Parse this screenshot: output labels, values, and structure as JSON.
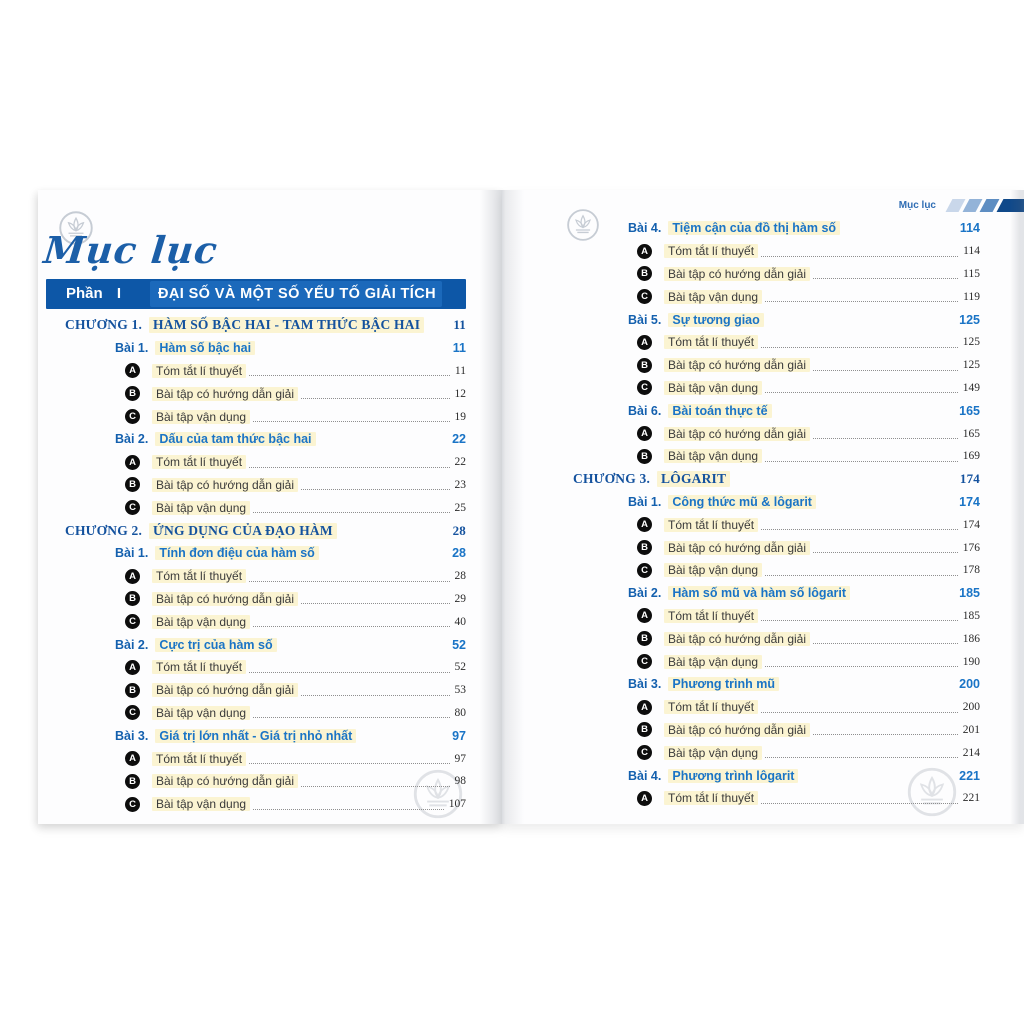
{
  "colors": {
    "banner_blue": "#0d57a7",
    "banner_inner_blue": "#1b69bb",
    "chapter_blue": "#14529e",
    "lesson_blue": "#1a74c6",
    "highlight_yellow": "#fbf4d2",
    "script_blue": "#1c5fa8",
    "badge_black": "#0d0d0d",
    "header_bar_navy": "#10498a",
    "chevron_light": "#c9d7ea",
    "chevron_mid": "#93b3d8",
    "chevron_dark": "#5d8dc2"
  },
  "left_page": {
    "logo_icon": "lotus-publisher-logo",
    "script_title": "Mục lục",
    "part_banner": {
      "label": "Phần I",
      "title": "ĐẠI SỐ VÀ MỘT SỐ YẾU TỐ GIẢI TÍCH"
    },
    "entries": [
      {
        "type": "chapter",
        "label": "CHƯƠNG 1.",
        "title": "HÀM SỐ BẬC HAI - TAM THỨC BẬC HAI",
        "page": "11"
      },
      {
        "type": "lesson",
        "label": "Bài 1.",
        "title": "Hàm số bậc hai",
        "page": "11"
      },
      {
        "type": "item",
        "badge": "A",
        "title": "Tóm tắt lí thuyết",
        "page": "11"
      },
      {
        "type": "item",
        "badge": "B",
        "title": "Bài tập có hướng dẫn giải",
        "page": "12"
      },
      {
        "type": "item",
        "badge": "C",
        "title": "Bài tập vận dụng",
        "page": "19"
      },
      {
        "type": "lesson",
        "label": "Bài 2.",
        "title": "Dấu của tam thức bậc hai",
        "page": "22"
      },
      {
        "type": "item",
        "badge": "A",
        "title": "Tóm tắt lí thuyết",
        "page": "22"
      },
      {
        "type": "item",
        "badge": "B",
        "title": "Bài tập có hướng dẫn giải",
        "page": "23"
      },
      {
        "type": "item",
        "badge": "C",
        "title": "Bài tập vận dụng",
        "page": "25"
      },
      {
        "type": "chapter",
        "label": "CHƯƠNG 2.",
        "title": "ỨNG DỤNG CỦA ĐẠO HÀM",
        "page": "28"
      },
      {
        "type": "lesson",
        "label": "Bài 1.",
        "title": "Tính đơn điệu của hàm số",
        "page": "28"
      },
      {
        "type": "item",
        "badge": "A",
        "title": "Tóm tắt lí thuyết",
        "page": "28"
      },
      {
        "type": "item",
        "badge": "B",
        "title": "Bài tập có hướng dẫn giải",
        "page": "29"
      },
      {
        "type": "item",
        "badge": "C",
        "title": "Bài tập vận dụng",
        "page": "40"
      },
      {
        "type": "lesson",
        "label": "Bài 2.",
        "title": "Cực trị của hàm số",
        "page": "52"
      },
      {
        "type": "item",
        "badge": "A",
        "title": "Tóm tắt lí thuyết",
        "page": "52"
      },
      {
        "type": "item",
        "badge": "B",
        "title": "Bài tập có hướng dẫn giải",
        "page": "53"
      },
      {
        "type": "item",
        "badge": "C",
        "title": "Bài tập vận dụng",
        "page": "80"
      },
      {
        "type": "lesson",
        "label": "Bài 3.",
        "title": "Giá trị lớn nhất - Giá trị nhỏ nhất",
        "page": "97"
      },
      {
        "type": "item",
        "badge": "A",
        "title": "Tóm tắt lí thuyết",
        "page": "97"
      },
      {
        "type": "item",
        "badge": "B",
        "title": "Bài tập có hướng dẫn giải",
        "page": "98"
      },
      {
        "type": "item",
        "badge": "C",
        "title": "Bài tập vận dụng",
        "page": "107"
      }
    ]
  },
  "right_page": {
    "logo_icon": "lotus-publisher-logo",
    "header_label": "Mục lục",
    "entries": [
      {
        "type": "lesson",
        "label": "Bài 4.",
        "title": "Tiệm cận của đồ thị hàm số",
        "page": "114"
      },
      {
        "type": "item",
        "badge": "A",
        "title": "Tóm tắt lí thuyết",
        "page": "114"
      },
      {
        "type": "item",
        "badge": "B",
        "title": "Bài tập có hướng dẫn giải",
        "page": "115"
      },
      {
        "type": "item",
        "badge": "C",
        "title": "Bài tập vận dụng",
        "page": "119"
      },
      {
        "type": "lesson",
        "label": "Bài 5.",
        "title": "Sự tương giao",
        "page": "125"
      },
      {
        "type": "item",
        "badge": "A",
        "title": "Tóm tắt lí thuyết",
        "page": "125"
      },
      {
        "type": "item",
        "badge": "B",
        "title": "Bài tập có hướng dẫn giải",
        "page": "125"
      },
      {
        "type": "item",
        "badge": "C",
        "title": "Bài tập vận dụng",
        "page": "149"
      },
      {
        "type": "lesson",
        "label": "Bài 6.",
        "title": "Bài toán thực tế",
        "page": "165"
      },
      {
        "type": "item",
        "badge": "A",
        "title": "Bài tập có hướng dẫn giải",
        "page": "165"
      },
      {
        "type": "item",
        "badge": "B",
        "title": "Bài tập vận dụng",
        "page": "169"
      },
      {
        "type": "chapter",
        "label": "CHƯƠNG 3.",
        "title": "LÔGARIT",
        "page": "174"
      },
      {
        "type": "lesson",
        "label": "Bài 1.",
        "title": "Công thức mũ & lôgarit",
        "page": "174"
      },
      {
        "type": "item",
        "badge": "A",
        "title": "Tóm tắt lí thuyết",
        "page": "174"
      },
      {
        "type": "item",
        "badge": "B",
        "title": "Bài tập có hướng dẫn giải",
        "page": "176"
      },
      {
        "type": "item",
        "badge": "C",
        "title": "Bài tập vận dụng",
        "page": "178"
      },
      {
        "type": "lesson",
        "label": "Bài 2.",
        "title": "Hàm số mũ và hàm số lôgarit",
        "page": "185"
      },
      {
        "type": "item",
        "badge": "A",
        "title": "Tóm tắt lí thuyết",
        "page": "185"
      },
      {
        "type": "item",
        "badge": "B",
        "title": "Bài tập có hướng dẫn giải",
        "page": "186"
      },
      {
        "type": "item",
        "badge": "C",
        "title": "Bài tập vận dụng",
        "page": "190"
      },
      {
        "type": "lesson",
        "label": "Bài 3.",
        "title": "Phương trình mũ",
        "page": "200"
      },
      {
        "type": "item",
        "badge": "A",
        "title": "Tóm tắt lí thuyết",
        "page": "200"
      },
      {
        "type": "item",
        "badge": "B",
        "title": "Bài tập có hướng dẫn giải",
        "page": "201"
      },
      {
        "type": "item",
        "badge": "C",
        "title": "Bài tập vận dụng",
        "page": "214"
      },
      {
        "type": "lesson",
        "label": "Bài 4.",
        "title": "Phương trình lôgarit",
        "page": "221"
      },
      {
        "type": "item",
        "badge": "A",
        "title": "Tóm tắt lí thuyết",
        "page": "221"
      }
    ]
  }
}
